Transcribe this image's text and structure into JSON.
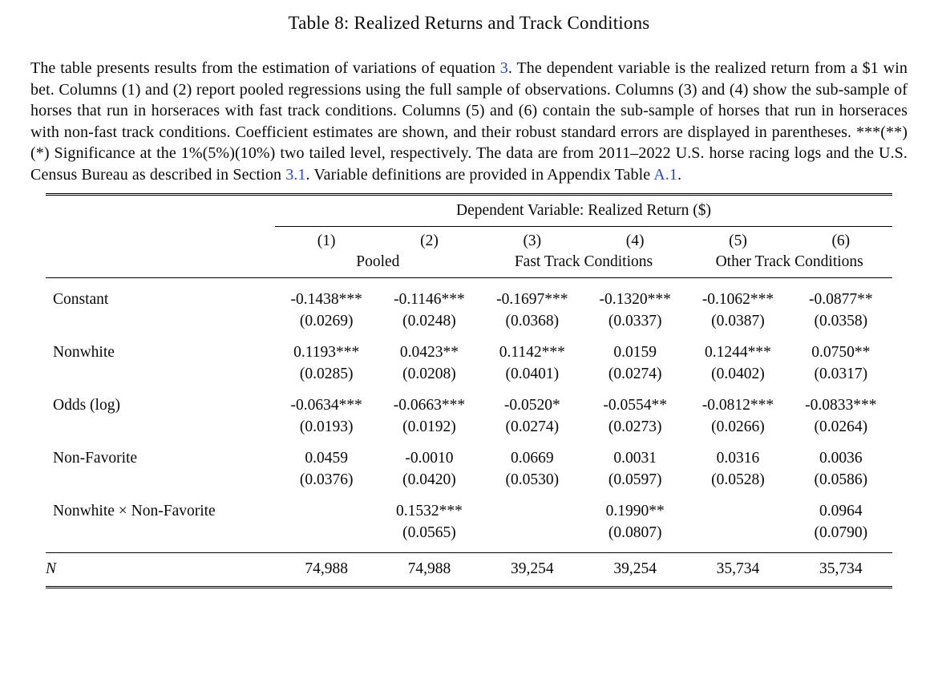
{
  "title": "Table 8: Realized Returns and Track Conditions",
  "colors": {
    "link_blue": "#2c49c8",
    "text": "#0a0a0a",
    "background": "#ffffff",
    "rule": "#000000"
  },
  "caption": {
    "segments": [
      {
        "text": "The table presents results from the estimation of variations of equation ",
        "link": false
      },
      {
        "text": "3",
        "link": true
      },
      {
        "text": ". The dependent variable is the realized return from a $1 win bet. Columns (1) and (2) report pooled regressions using the full sample of observations. Columns (3) and (4) show the sub-sample of horses that run in horseraces with fast track conditions. Columns (5) and (6) contain the sub-sample of horses that run in horseraces with non-fast track conditions. Coefficient estimates are shown, and their robust standard errors are displayed in parentheses. ***(**)(*) Significance at the 1%(5%)(10%) two tailed level, respectively. The data are from 2011–2022 U.S. horse racing logs and the U.S. Census Bureau as described in Section ",
        "link": false
      },
      {
        "text": "3.1",
        "link": true
      },
      {
        "text": ". Variable definitions are provided in Appendix Table ",
        "link": false
      },
      {
        "text": "A.1",
        "link": true
      },
      {
        "text": ".",
        "link": false
      }
    ]
  },
  "table": {
    "dependent_variable_header": "Dependent Variable: Realized Return ($)",
    "column_numbers": [
      "(1)",
      "(2)",
      "(3)",
      "(4)",
      "(5)",
      "(6)"
    ],
    "group_headers": [
      {
        "label": "Pooled",
        "span": 2
      },
      {
        "label": "Fast Track Conditions",
        "span": 2
      },
      {
        "label": "Other Track Conditions",
        "span": 2
      }
    ],
    "rows": [
      {
        "label": "Constant",
        "cells": [
          {
            "coef": "-0.1438***",
            "se": "(0.0269)"
          },
          {
            "coef": "-0.1146***",
            "se": "(0.0248)"
          },
          {
            "coef": "-0.1697***",
            "se": "(0.0368)"
          },
          {
            "coef": "-0.1320***",
            "se": "(0.0337)"
          },
          {
            "coef": "-0.1062***",
            "se": "(0.0387)"
          },
          {
            "coef": "-0.0877**",
            "se": "(0.0358)"
          }
        ]
      },
      {
        "label": "Nonwhite",
        "cells": [
          {
            "coef": "0.1193***",
            "se": "(0.0285)"
          },
          {
            "coef": "0.0423**",
            "se": "(0.0208)"
          },
          {
            "coef": "0.1142***",
            "se": "(0.0401)"
          },
          {
            "coef": "0.0159",
            "se": "(0.0274)"
          },
          {
            "coef": "0.1244***",
            "se": "(0.0402)"
          },
          {
            "coef": "0.0750**",
            "se": "(0.0317)"
          }
        ]
      },
      {
        "label": "Odds (log)",
        "cells": [
          {
            "coef": "-0.0634***",
            "se": "(0.0193)"
          },
          {
            "coef": "-0.0663***",
            "se": "(0.0192)"
          },
          {
            "coef": "-0.0520*",
            "se": "(0.0274)"
          },
          {
            "coef": "-0.0554**",
            "se": "(0.0273)"
          },
          {
            "coef": "-0.0812***",
            "se": "(0.0266)"
          },
          {
            "coef": "-0.0833***",
            "se": "(0.0264)"
          }
        ]
      },
      {
        "label": "Non-Favorite",
        "cells": [
          {
            "coef": "0.0459",
            "se": "(0.0376)"
          },
          {
            "coef": "-0.0010",
            "se": "(0.0420)"
          },
          {
            "coef": "0.0669",
            "se": "(0.0530)"
          },
          {
            "coef": "0.0031",
            "se": "(0.0597)"
          },
          {
            "coef": "0.0316",
            "se": "(0.0528)"
          },
          {
            "coef": "0.0036",
            "se": "(0.0586)"
          }
        ]
      },
      {
        "label": "Nonwhite × Non-Favorite",
        "cells": [
          {
            "coef": "",
            "se": ""
          },
          {
            "coef": "0.1532***",
            "se": "(0.0565)"
          },
          {
            "coef": "",
            "se": ""
          },
          {
            "coef": "0.1990**",
            "se": "(0.0807)"
          },
          {
            "coef": "",
            "se": ""
          },
          {
            "coef": "0.0964",
            "se": "(0.0790)"
          }
        ]
      }
    ],
    "n_row": {
      "label": "N",
      "values": [
        "74,988",
        "74,988",
        "39,254",
        "39,254",
        "35,734",
        "35,734"
      ]
    }
  }
}
